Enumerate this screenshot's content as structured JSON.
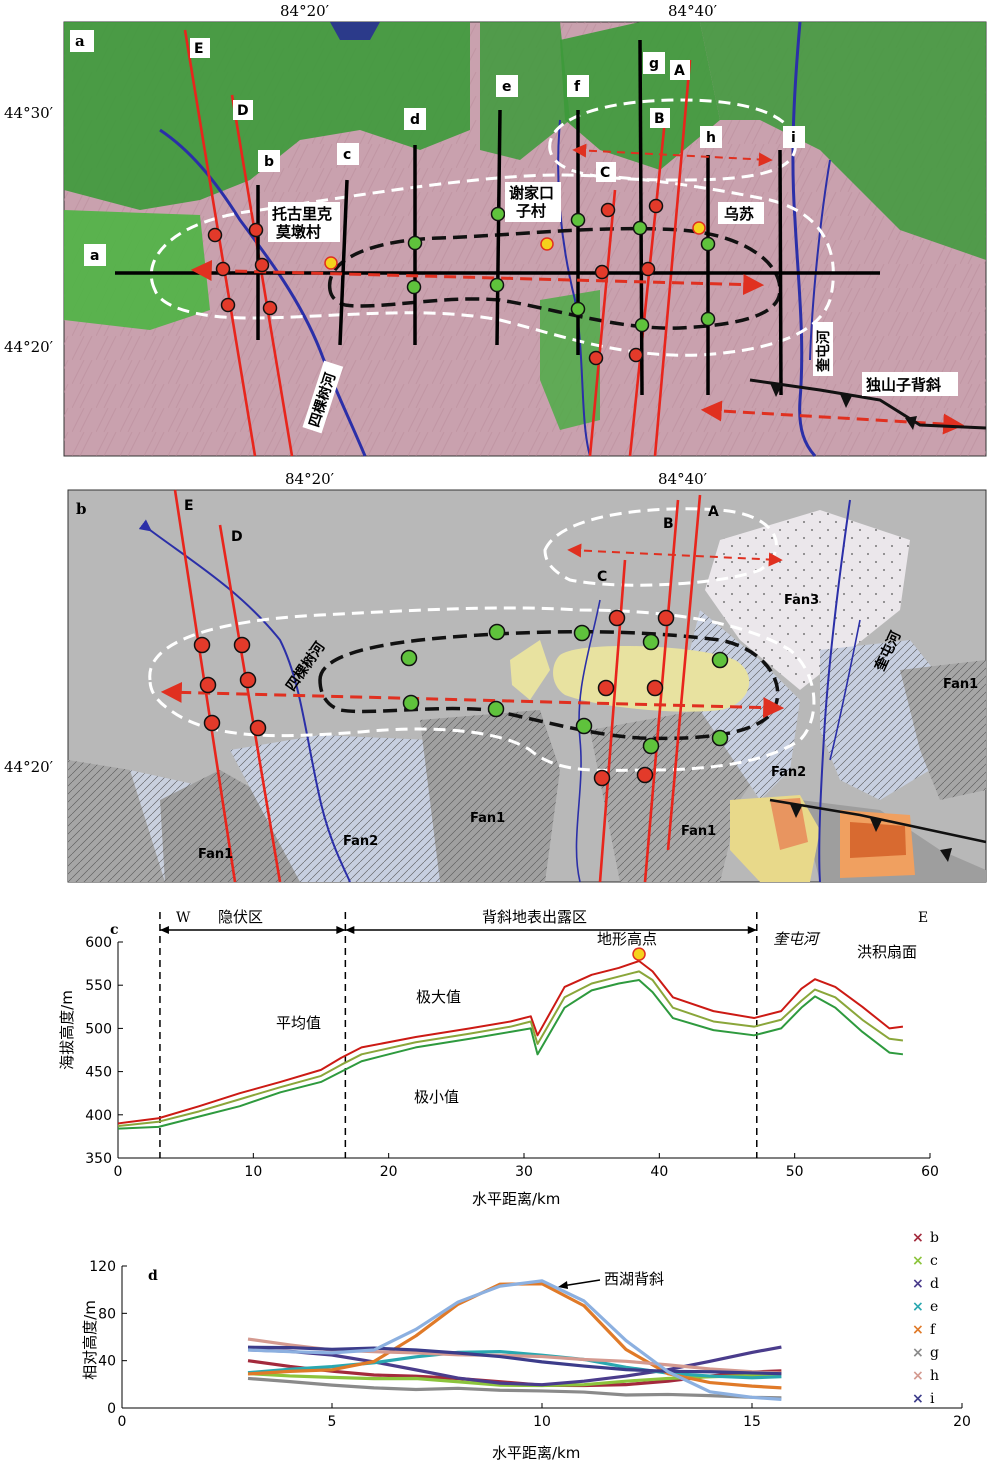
{
  "panel_a": {
    "letter": "a",
    "lon_labels": [
      "84°20′",
      "84°40′"
    ],
    "lat_labels": [
      "44°30′",
      "44°20′"
    ],
    "profile_letters": [
      "b",
      "c",
      "d",
      "e",
      "f",
      "g",
      "h",
      "i"
    ],
    "fault_letters": [
      "E",
      "D",
      "C",
      "B",
      "A"
    ],
    "baseline_label": "a",
    "places": {
      "village1_line1": "托古里克",
      "village1_line2": "莫墩村",
      "village2_line1": "谢家口",
      "village2_line2": "子村",
      "town": "乌苏",
      "river_west": "四棵树河",
      "river_east": "奎屯河",
      "anticline": "独山子背斜"
    },
    "colors": {
      "fault": "#e8251c",
      "river": "#2b2fa8",
      "dashed_outline": "#ffffff",
      "axis_arrow": "#e03020"
    }
  },
  "panel_b": {
    "letter": "b",
    "lon_labels": [
      "84°20′",
      "84°40′"
    ],
    "lat_labels": [
      "44°20′"
    ],
    "fault_letters": [
      "E",
      "D",
      "C",
      "B",
      "A"
    ],
    "river_west": "四棵树河",
    "river_east": "奎屯河",
    "fans": [
      "Fan1",
      "Fan2",
      "Fan3"
    ]
  },
  "panel_c": {
    "letter": "c",
    "west": "W",
    "east": "E",
    "zone_hidden": "隐伏区",
    "zone_exposed": "背斜地表出露区",
    "annotations": {
      "peak": "地形高点",
      "river": "奎屯河",
      "fan_surface": "洪积扇面",
      "max": "极大值",
      "mean": "平均值",
      "min": "极小值"
    }
  },
  "panel_d": {
    "letter": "d",
    "annotation": "西湖背斜",
    "legend_symbol": "×"
  },
  "chart_data": [
    {
      "type": "line",
      "panel": "c",
      "xlabel": "水平距离/km",
      "ylabel": "海拔高度/m",
      "xlim": [
        0,
        60
      ],
      "ylim": [
        350,
        600
      ],
      "xticks": [
        0,
        10,
        20,
        30,
        40,
        50,
        60
      ],
      "yticks": [
        350,
        400,
        450,
        500,
        550,
        600
      ],
      "x": [
        0,
        3,
        6,
        9,
        12,
        15,
        16.5,
        18,
        22,
        26,
        29,
        30.5,
        31,
        33,
        35,
        37,
        38.5,
        39.5,
        41,
        44,
        47,
        49,
        50.5,
        51.5,
        53,
        55,
        57,
        58
      ],
      "series": [
        {
          "color": "#cc1a14",
          "values": [
            390,
            396,
            410,
            425,
            438,
            452,
            466,
            478,
            490,
            500,
            508,
            514,
            492,
            548,
            562,
            570,
            578,
            566,
            536,
            520,
            512,
            520,
            546,
            557,
            548,
            525,
            500,
            502
          ]
        },
        {
          "color": "#8aa63a",
          "values": [
            387,
            392,
            404,
            418,
            432,
            445,
            458,
            470,
            484,
            494,
            502,
            508,
            482,
            536,
            552,
            560,
            566,
            556,
            524,
            508,
            502,
            510,
            532,
            545,
            536,
            510,
            488,
            486
          ]
        },
        {
          "color": "#2e9a3e",
          "values": [
            384,
            386,
            398,
            410,
            426,
            438,
            450,
            462,
            478,
            488,
            496,
            500,
            470,
            524,
            544,
            552,
            556,
            542,
            512,
            498,
            492,
            500,
            524,
            537,
            524,
            496,
            472,
            470
          ]
        }
      ],
      "markers": [
        {
          "x": 38.5,
          "y": 586,
          "color": "#f5d21c"
        }
      ],
      "vlines": [
        3.1,
        16.8,
        47.2
      ]
    },
    {
      "type": "line",
      "panel": "d",
      "xlabel": "水平距离/km",
      "ylabel": "相对高度/m",
      "xlim": [
        0,
        20
      ],
      "ylim": [
        0,
        120
      ],
      "xticks": [
        0,
        5,
        10,
        15,
        20
      ],
      "yticks": [
        0,
        40,
        80,
        120
      ],
      "x": [
        3,
        4,
        5,
        6,
        7,
        8,
        9,
        10,
        11,
        12,
        13,
        14,
        15,
        15.7
      ],
      "series": [
        {
          "name": "b",
          "color": "#a32a3c",
          "values": [
            40,
            36,
            32,
            28,
            26,
            24,
            22,
            20,
            20,
            20,
            22,
            26,
            30,
            32
          ]
        },
        {
          "name": "c",
          "color": "#8cc43c",
          "values": [
            30,
            28,
            26,
            24,
            24,
            22,
            20,
            20,
            20,
            22,
            24,
            26,
            28,
            30
          ]
        },
        {
          "name": "d",
          "color": "#4a3c8c",
          "values": [
            50,
            48,
            44,
            38,
            32,
            26,
            22,
            20,
            22,
            26,
            32,
            40,
            48,
            52
          ]
        },
        {
          "name": "e",
          "color": "#2aa8b0",
          "values": [
            30,
            32,
            34,
            38,
            44,
            48,
            48,
            44,
            40,
            34,
            30,
            28,
            26,
            26
          ]
        },
        {
          "name": "f",
          "color": "#e07a28",
          "values": [
            28,
            30,
            32,
            40,
            62,
            88,
            104,
            104,
            86,
            50,
            30,
            22,
            18,
            16
          ]
        },
        {
          "name": "g",
          "color": "#8a8a8a",
          "values": [
            24,
            22,
            20,
            18,
            16,
            16,
            14,
            14,
            14,
            12,
            12,
            10,
            8,
            8
          ]
        },
        {
          "name": "h",
          "color": "#d49a90",
          "values": [
            58,
            54,
            50,
            48,
            46,
            44,
            44,
            44,
            42,
            40,
            36,
            32,
            30,
            30
          ]
        },
        {
          "name": "i",
          "color": "#3c3c8a",
          "values": [
            52,
            52,
            50,
            50,
            48,
            46,
            44,
            40,
            36,
            32,
            30,
            30,
            30,
            30
          ]
        },
        {
          "color": "#8cb0e0",
          "values": [
            50,
            48,
            46,
            48,
            66,
            90,
            104,
            108,
            90,
            56,
            30,
            14,
            10,
            8
          ]
        }
      ]
    }
  ]
}
